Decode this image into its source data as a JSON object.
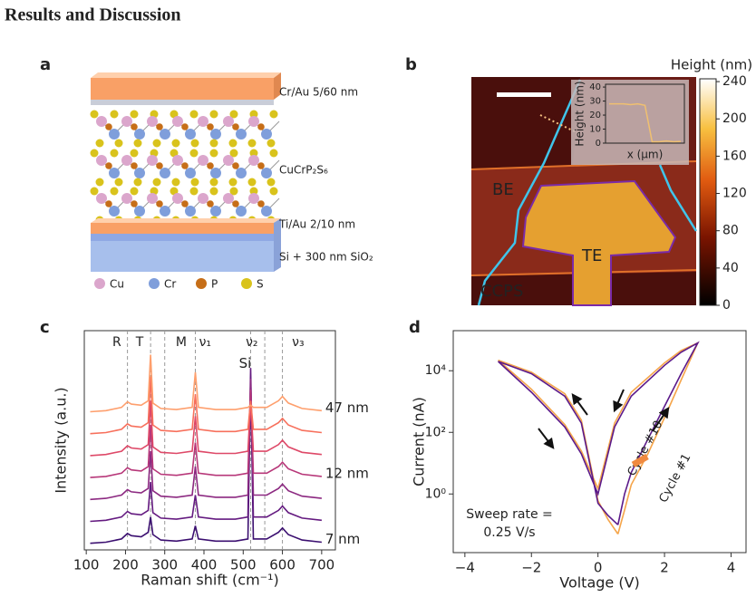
{
  "heading": "Results and Discussion",
  "panel_a": {
    "label": "a",
    "layers": [
      "Cr/Au 5/60 nm",
      "CuCrP₂S₆",
      "Ti/Au 2/10 nm",
      "Si + 300 nm SiO₂"
    ],
    "legend": [
      "Cu",
      "Cr",
      "P",
      "S"
    ]
  },
  "panel_b": {
    "label": "b",
    "regions": [
      "BE",
      "TE",
      "CCPS"
    ],
    "colorbar": {
      "title": "Height (nm)",
      "lim": [
        0,
        243
      ],
      "ticks": [
        0,
        40,
        80,
        120,
        160,
        200,
        240
      ]
    },
    "inset": {
      "xlabel": "x (μm)",
      "ylabel": "Height (nm)",
      "ylim": [
        0,
        42
      ],
      "yticks": [
        0,
        10,
        20,
        30,
        40
      ],
      "values": [
        28,
        28,
        28,
        27.5,
        28,
        27,
        1,
        1,
        1.5,
        1,
        1.2
      ]
    }
  },
  "chart_data": [
    {
      "type": "line",
      "label": "c",
      "xlabel": "Raman shift (cm⁻¹)",
      "ylabel": "Intensity (a.u.)",
      "xlim": [
        95,
        735
      ],
      "xticks": [
        100,
        200,
        300,
        400,
        500,
        600,
        700
      ],
      "ylim": [
        0,
        10
      ],
      "x": [
        110,
        150,
        190,
        205,
        215,
        240,
        258,
        264,
        270,
        290,
        330,
        370,
        378,
        386,
        430,
        480,
        512,
        519,
        526,
        560,
        590,
        600,
        615,
        650,
        700
      ],
      "series": [
        {
          "name": "7 nm",
          "color": "#3b0f70",
          "values": [
            0.3,
            0.35,
            0.5,
            0.75,
            0.65,
            0.6,
            0.8,
            1.5,
            0.7,
            0.45,
            0.4,
            0.5,
            1.1,
            0.5,
            0.4,
            0.4,
            0.5,
            7.8,
            0.5,
            0.5,
            0.8,
            1.0,
            0.7,
            0.45,
            0.35
          ]
        },
        {
          "color": "#641a80",
          "values": [
            1.3,
            1.35,
            1.5,
            1.75,
            1.65,
            1.6,
            1.8,
            3.1,
            1.7,
            1.45,
            1.4,
            1.5,
            2.5,
            1.5,
            1.4,
            1.4,
            1.5,
            8.3,
            1.5,
            1.5,
            1.8,
            2.0,
            1.7,
            1.45,
            1.35
          ]
        },
        {
          "color": "#8c2981",
          "values": [
            2.3,
            2.35,
            2.5,
            2.75,
            2.65,
            2.6,
            2.8,
            4.5,
            2.7,
            2.45,
            2.4,
            2.5,
            3.8,
            2.5,
            2.4,
            2.4,
            2.5,
            7.8,
            2.5,
            2.5,
            2.8,
            3.0,
            2.7,
            2.45,
            2.35
          ]
        },
        {
          "name": "12 nm",
          "color": "#b73779",
          "values": [
            3.3,
            3.35,
            3.5,
            3.75,
            3.65,
            3.6,
            3.8,
            5.7,
            3.7,
            3.45,
            3.4,
            3.5,
            4.9,
            3.5,
            3.4,
            3.4,
            3.5,
            7.3,
            3.5,
            3.5,
            3.8,
            4.0,
            3.7,
            3.45,
            3.35
          ]
        },
        {
          "color": "#de4968",
          "values": [
            4.3,
            4.35,
            4.5,
            4.75,
            4.65,
            4.6,
            4.8,
            6.8,
            4.7,
            4.45,
            4.4,
            4.5,
            6.1,
            4.5,
            4.4,
            4.4,
            4.5,
            6.8,
            4.5,
            4.5,
            4.8,
            5.0,
            4.7,
            4.45,
            4.35
          ]
        },
        {
          "color": "#f7705c",
          "values": [
            5.3,
            5.35,
            5.5,
            5.75,
            5.65,
            5.6,
            5.8,
            7.9,
            5.7,
            5.45,
            5.4,
            5.5,
            7.1,
            5.5,
            5.4,
            5.4,
            5.5,
            6.8,
            5.5,
            5.5,
            5.8,
            6.0,
            5.7,
            5.45,
            5.35
          ]
        },
        {
          "name": "47 nm",
          "color": "#fe9f6d",
          "values": [
            6.3,
            6.35,
            6.5,
            6.75,
            6.65,
            6.6,
            6.8,
            8.9,
            6.7,
            6.45,
            6.4,
            6.5,
            8.1,
            6.5,
            6.4,
            6.4,
            6.5,
            6.6,
            6.5,
            6.5,
            6.8,
            7.0,
            6.7,
            6.45,
            6.35
          ]
        }
      ],
      "reference_lines": [
        205,
        264,
        300,
        378,
        519,
        555,
        600
      ],
      "peak_labels": [
        {
          "label": "R",
          "x": 178
        },
        {
          "label": "T",
          "x": 236
        },
        {
          "label": "M",
          "x": 342
        },
        {
          "label": "ν₁",
          "x": 403
        },
        {
          "label": "ν₂",
          "x": 522
        },
        {
          "label": "ν₃",
          "x": 640
        }
      ],
      "si_label": {
        "label": "Si",
        "x": 505,
        "y": 8.5,
        "color": "#c83e73"
      }
    },
    {
      "type": "line",
      "label": "d",
      "log_y": true,
      "xlabel": "Voltage (V)",
      "ylabel": "Current (nA)",
      "xlim": [
        -4.35,
        4.45
      ],
      "xticks": [
        {
          "value": -4,
          "label": "−4"
        },
        {
          "value": -2,
          "label": "−2"
        },
        0,
        2,
        4
      ],
      "ylim": [
        0.0125,
        200000
      ],
      "yticks": [
        {
          "value": 1,
          "label": "10⁰"
        },
        {
          "value": 100,
          "label": "10²"
        },
        {
          "value": 10000,
          "label": "10⁴"
        }
      ],
      "x": [
        0.6,
        0.8,
        1.0,
        1.5,
        2.0,
        2.5,
        3.0,
        2.5,
        2.0,
        1.0,
        0.5,
        0.0,
        -0.5,
        -1.0,
        -2.0,
        -3.0,
        -2.0,
        -1.0,
        -0.5,
        0.0,
        0.3,
        0.6
      ],
      "series": [
        {
          "name": "Cycle #1",
          "color": "#f5a54a",
          "values": [
            0.05,
            0.3,
            2,
            20,
            300,
            5000,
            80000,
            45000,
            18000,
            2000,
            200,
            1.5,
            25,
            180,
            2500,
            22000,
            9000,
            1800,
            250,
            0.6,
            0.15,
            0.05
          ]
        },
        {
          "name": "Cycle #10",
          "color": "#5b1a8a",
          "values": [
            0.1,
            1,
            5,
            60,
            700,
            8000,
            80000,
            40000,
            15000,
            1500,
            150,
            1,
            20,
            150,
            2000,
            20000,
            8000,
            1500,
            200,
            0.5,
            0.2,
            0.1
          ]
        }
      ],
      "annotation": [
        "Sweep rate =",
        "0.25 V/s"
      ]
    }
  ]
}
